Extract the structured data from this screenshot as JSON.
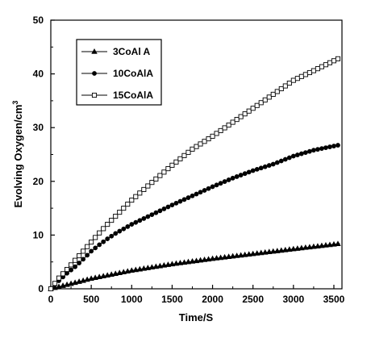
{
  "chart_data": {
    "type": "line",
    "xlabel": "Time/S",
    "ylabel": "Evolving Oxygen/cm",
    "ylabel_superscript": "3",
    "xlim": [
      0,
      3600
    ],
    "ylim": [
      0,
      50
    ],
    "xticks": [
      "0",
      "500",
      "1000",
      "1500",
      "2000",
      "2500",
      "3000",
      "3500"
    ],
    "yticks": [
      "0",
      "10",
      "20",
      "30",
      "40",
      "50"
    ],
    "grid": false,
    "legend_position": "top-left",
    "series": [
      {
        "name": "3CoAl A",
        "marker": "filled-triangle",
        "x": [
          0,
          500,
          1000,
          1500,
          2000,
          2500,
          3000,
          3575
        ],
        "y": [
          0,
          1.9,
          3.4,
          4.6,
          5.6,
          6.5,
          7.4,
          8.4
        ]
      },
      {
        "name": "10CoAlA",
        "marker": "filled-circle",
        "x": [
          0,
          100,
          200,
          300,
          400,
          500,
          600,
          700,
          800,
          1000,
          1250,
          1500,
          1750,
          2000,
          2250,
          2500,
          2750,
          3000,
          3250,
          3575
        ],
        "y": [
          0,
          1.5,
          2.9,
          4.1,
          5.5,
          7.0,
          8.2,
          9.3,
          10.3,
          12.0,
          13.8,
          15.6,
          17.3,
          19.0,
          20.6,
          22.0,
          23.2,
          24.7,
          25.8,
          26.8
        ]
      },
      {
        "name": "15CoAlA",
        "marker": "open-square",
        "x": [
          0,
          100,
          200,
          300,
          400,
          500,
          600,
          700,
          800,
          1000,
          1250,
          1500,
          1750,
          2000,
          2250,
          2500,
          2750,
          3000,
          3250,
          3575
        ],
        "y": [
          0,
          2.0,
          3.6,
          5.3,
          7.0,
          8.7,
          10.4,
          12.0,
          13.5,
          16.5,
          19.8,
          23.0,
          26.0,
          28.4,
          31.0,
          33.6,
          36.2,
          38.8,
          40.6,
          43.0
        ]
      }
    ]
  }
}
